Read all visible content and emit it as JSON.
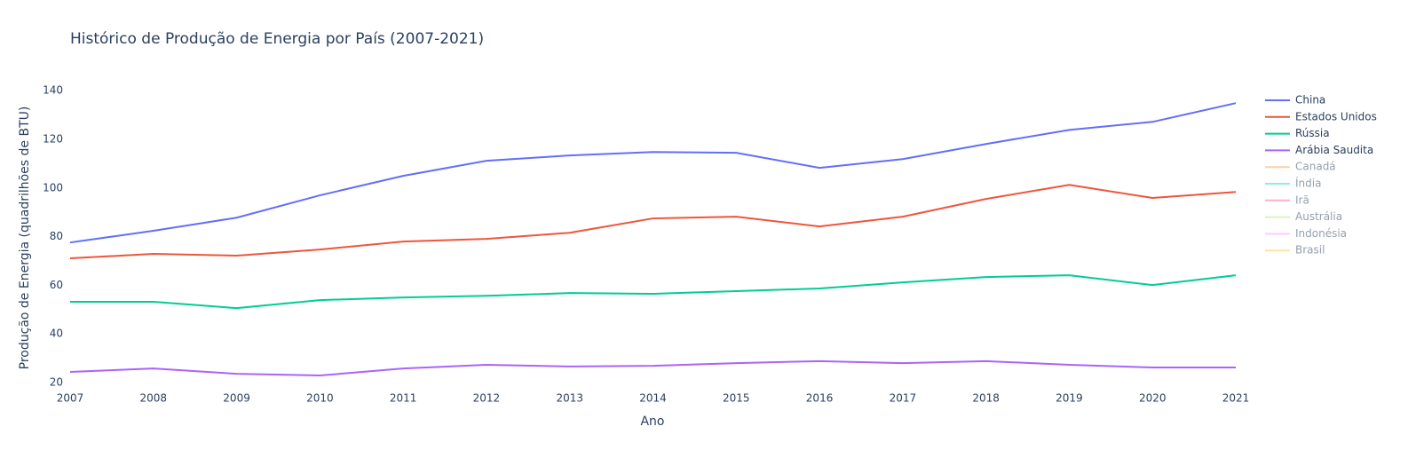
{
  "chart_data": {
    "type": "line",
    "title": "Histórico de Produção de Energia por País (2007-2021)",
    "x_label": "Ano",
    "y_label": "Produção de Energia (quadrilhões de BTU)",
    "x": [
      2007,
      2008,
      2009,
      2010,
      2011,
      2012,
      2013,
      2014,
      2015,
      2016,
      2017,
      2018,
      2019,
      2020,
      2021
    ],
    "xlim": [
      2007,
      2021
    ],
    "xticks": [
      2007,
      2008,
      2009,
      2010,
      2011,
      2012,
      2013,
      2014,
      2015,
      2016,
      2017,
      2018,
      2019,
      2020,
      2021
    ],
    "ylim": [
      20,
      143
    ],
    "yticks": [
      20,
      40,
      60,
      80,
      100,
      120,
      140
    ],
    "grid": false,
    "legend": "right",
    "series": [
      {
        "name": "China",
        "color": "#636efa",
        "values": [
          77.6,
          82.4,
          87.8,
          97,
          105,
          111.2,
          113.4,
          114.8,
          114.5,
          108.3,
          111.9,
          118.1,
          123.9,
          127.2,
          134.9
        ]
      },
      {
        "name": "Estados Unidos",
        "color": "#EF553B",
        "values": [
          71.1,
          72.9,
          72.2,
          74.7,
          78,
          79.1,
          81.6,
          87.5,
          88.2,
          84.2,
          88.2,
          95.5,
          101.3,
          95.9,
          98.4
        ]
      },
      {
        "name": "Rússia",
        "color": "#00cc96",
        "values": [
          53.2,
          53.2,
          50.6,
          53.9,
          55,
          55.7,
          56.8,
          56.5,
          57.6,
          58.7,
          61.2,
          63.4,
          64.1,
          60.1,
          64.1
        ]
      },
      {
        "name": "Arábia Saudita",
        "color": "#ab63fa",
        "values": [
          24.4,
          25.8,
          23.6,
          22.9,
          25.8,
          27.3,
          26.6,
          26.9,
          28,
          28.8,
          28,
          28.8,
          27.3,
          26.2,
          26.2
        ]
      },
      {
        "name": "Canadá",
        "color": "#FFA15A",
        "visible": false
      },
      {
        "name": "Índia",
        "color": "#19d3f3",
        "visible": false
      },
      {
        "name": "Irã",
        "color": "#FF6692",
        "visible": false
      },
      {
        "name": "Austrália",
        "color": "#B6E880",
        "visible": false
      },
      {
        "name": "Indonésia",
        "color": "#FF97FF",
        "visible": false
      },
      {
        "name": "Brasil",
        "color": "#FECB52",
        "visible": false
      }
    ]
  }
}
